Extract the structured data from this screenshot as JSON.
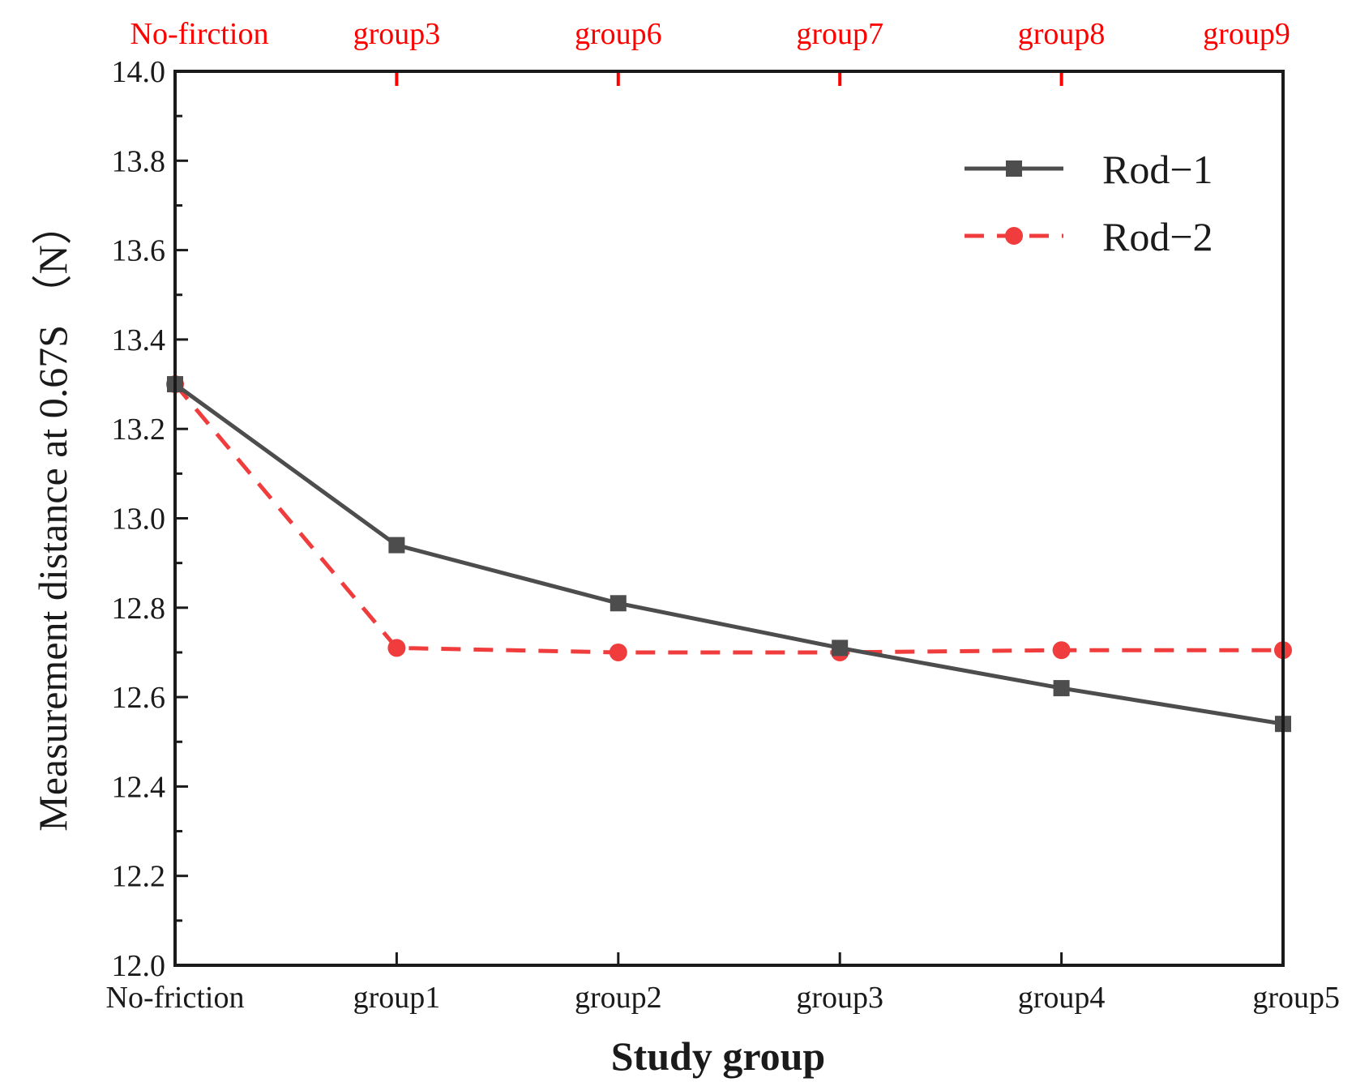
{
  "chart_data": {
    "type": "line",
    "categories": [
      "No-friction",
      "group1",
      "group2",
      "group3",
      "group4",
      "group5"
    ],
    "top_categories": [
      "No-firction",
      "group3",
      "group6",
      "group7",
      "group8",
      "group9"
    ],
    "xlabel": "Study group",
    "ylabel": "Measurement distance at 0.67S （N）",
    "ylim": [
      12.0,
      14.0
    ],
    "yticks": [
      "12.0",
      "12.2",
      "12.4",
      "12.6",
      "12.8",
      "13.0",
      "13.2",
      "13.4",
      "13.6",
      "13.8",
      "14.0"
    ],
    "series": [
      {
        "name": "Rod−1",
        "values": [
          13.3,
          12.94,
          12.81,
          12.71,
          12.62,
          12.54
        ],
        "color": "#4d4d4d",
        "marker": "square",
        "line": "solid"
      },
      {
        "name": "Rod−2",
        "values": [
          13.3,
          12.71,
          12.7,
          12.7,
          12.705,
          12.705
        ],
        "color": "#f03c3c",
        "marker": "circle",
        "line": "dashed"
      }
    ],
    "grid": false,
    "legend_position": "top-right",
    "top_axis_color": "#ff0000"
  }
}
